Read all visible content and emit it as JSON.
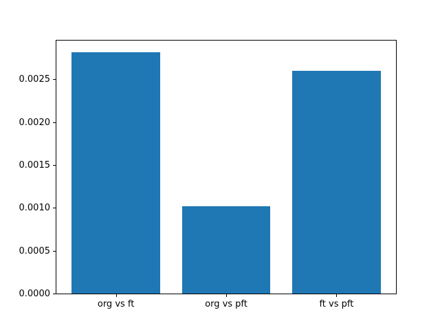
{
  "chart_data": {
    "type": "bar",
    "title": "",
    "categories": [
      "org vs ft",
      "org vs pft",
      "ft vs pft"
    ],
    "values": [
      0.00281,
      0.00102,
      0.0026
    ],
    "xlabel": "",
    "ylabel": "",
    "xlim": [
      -0.54,
      2.54
    ],
    "ylim": [
      0,
      0.00295
    ],
    "ytick_values": [
      0.0,
      0.0005,
      0.001,
      0.0015,
      0.002,
      0.0025
    ],
    "ytick_labels": [
      "0.0000",
      "0.0005",
      "0.0010",
      "0.0015",
      "0.0020",
      "0.0025"
    ],
    "bar_width": 0.8,
    "bar_color": "#1f77b4",
    "grid": false,
    "legend": "none",
    "background_color": "#ffffff",
    "spine_color": "#000000"
  }
}
